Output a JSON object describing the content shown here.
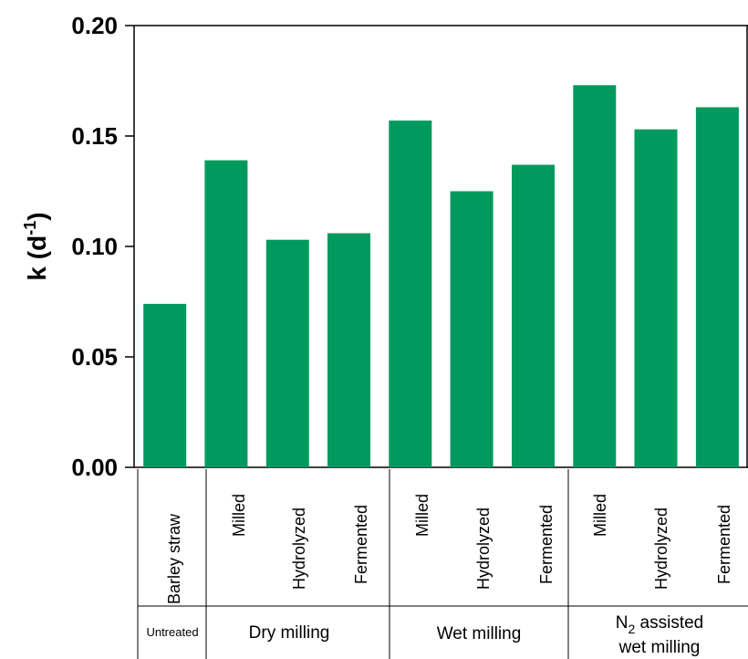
{
  "chart_data": {
    "type": "bar",
    "ylabel": "k (d",
    "ylabel_sup": "-1",
    "ylabel_close": ")",
    "ylim": [
      0,
      0.2
    ],
    "yticks": [
      "0.00",
      "0.05",
      "0.10",
      "0.15",
      "0.20"
    ],
    "categories": [
      "Barley straw",
      "Milled",
      "Hydrolyzed",
      "Fermented",
      "Milled",
      "Hydrolyzed",
      "Fermented",
      "Milled",
      "Hydrolyzed",
      "Fermented"
    ],
    "values": [
      0.074,
      0.139,
      0.103,
      0.106,
      0.157,
      0.125,
      0.137,
      0.173,
      0.153,
      0.163
    ],
    "color": "#009a5e",
    "groups": [
      {
        "label": "Untreated",
        "span": 1
      },
      {
        "label": "Dry milling",
        "span": 3
      },
      {
        "label": "Wet milling",
        "span": 3
      },
      {
        "label_pre": "N",
        "label_sub": "2",
        "label_post": " assisted",
        "label_line2": "wet milling",
        "span": 3
      }
    ]
  }
}
